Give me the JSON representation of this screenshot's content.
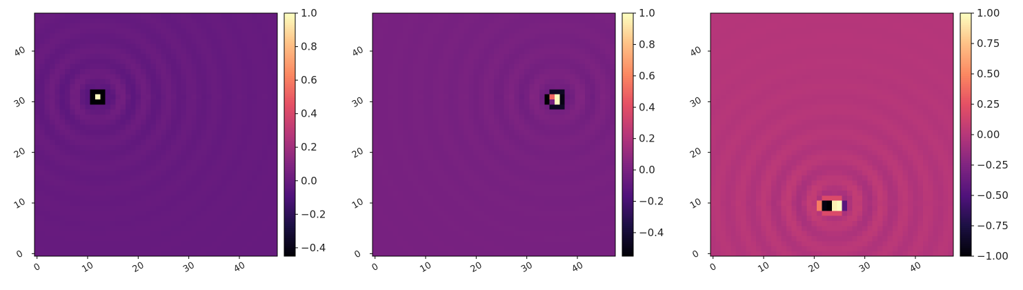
{
  "chart_data": [
    {
      "type": "heatmap",
      "title": "",
      "grid_size": 48,
      "colormap": "magma",
      "x_ticks": [
        "0",
        "10",
        "20",
        "30",
        "40"
      ],
      "y_ticks": [
        "0",
        "10",
        "20",
        "30",
        "40"
      ],
      "xlim": [
        0,
        47
      ],
      "ylim": [
        0,
        47
      ],
      "colorbar": {
        "range": [
          -0.45,
          1.0
        ],
        "ticks": [
          -0.4,
          -0.2,
          0.0,
          0.2,
          0.4,
          0.6,
          0.8,
          1.0
        ],
        "tick_labels": [
          "−0.4",
          "−0.2",
          "0.0",
          "0.2",
          "0.4",
          "0.6",
          "0.8",
          "1.0"
        ]
      },
      "background_value": 0.0,
      "peaks": [
        {
          "x": 11,
          "y": 30,
          "w": 3,
          "h": 3,
          "value": -0.45
        },
        {
          "x": 12,
          "y": 31,
          "w": 1,
          "h": 1,
          "value": 1.0
        }
      ],
      "ring_center": [
        12,
        31
      ],
      "ring_amplitude": 0.07,
      "ring_radius": 12
    },
    {
      "type": "heatmap",
      "title": "",
      "grid_size": 48,
      "colormap": "magma",
      "x_ticks": [
        "0",
        "10",
        "20",
        "30",
        "40"
      ],
      "y_ticks": [
        "0",
        "10",
        "20",
        "30",
        "40"
      ],
      "xlim": [
        0,
        47
      ],
      "ylim": [
        0,
        47
      ],
      "colorbar": {
        "range": [
          -0.55,
          1.0
        ],
        "ticks": [
          -0.4,
          -0.2,
          0.0,
          0.2,
          0.4,
          0.6,
          0.8,
          1.0
        ],
        "tick_labels": [
          "−0.4",
          "−0.2",
          "0.0",
          "0.2",
          "0.4",
          "0.6",
          "0.8",
          "1.0"
        ]
      },
      "background_value": 0.0,
      "peaks": [
        {
          "x": 34,
          "y": 30,
          "w": 1,
          "h": 2,
          "value": -0.55
        },
        {
          "x": 35,
          "y": 31,
          "w": 1,
          "h": 1,
          "value": 0.5
        },
        {
          "x": 36,
          "y": 30,
          "w": 1,
          "h": 2,
          "value": 1.0
        },
        {
          "x": 37,
          "y": 30,
          "w": 1,
          "h": 2,
          "value": -0.5
        },
        {
          "x": 35,
          "y": 29,
          "w": 3,
          "h": 1,
          "value": -0.45
        },
        {
          "x": 35,
          "y": 32,
          "w": 3,
          "h": 1,
          "value": -0.45
        }
      ],
      "ring_center": [
        36,
        31
      ],
      "ring_amplitude": 0.05,
      "ring_radius": 12
    },
    {
      "type": "heatmap",
      "title": "",
      "grid_size": 48,
      "colormap": "magma",
      "x_ticks": [
        "0",
        "10",
        "20",
        "30",
        "40"
      ],
      "y_ticks": [
        "0",
        "10",
        "20",
        "30",
        "40"
      ],
      "xlim": [
        0,
        47
      ],
      "ylim": [
        0,
        47
      ],
      "colorbar": {
        "range": [
          -1.0,
          1.0
        ],
        "ticks": [
          -1.0,
          -0.75,
          -0.5,
          -0.25,
          0.0,
          0.25,
          0.5,
          0.75,
          1.0
        ],
        "tick_labels": [
          "−1.00",
          "−0.75",
          "−0.50",
          "−0.25",
          "0.00",
          "0.25",
          "0.50",
          "0.75",
          "1.00"
        ]
      },
      "background_value": 0.0,
      "peaks": [
        {
          "x": 22,
          "y": 9,
          "w": 1,
          "h": 2,
          "value": -0.95
        },
        {
          "x": 23,
          "y": 9,
          "w": 1,
          "h": 2,
          "value": -1.0
        },
        {
          "x": 24,
          "y": 9,
          "w": 1,
          "h": 2,
          "value": 0.95
        },
        {
          "x": 25,
          "y": 9,
          "w": 1,
          "h": 2,
          "value": 1.0
        },
        {
          "x": 21,
          "y": 9,
          "w": 1,
          "h": 2,
          "value": 0.45
        },
        {
          "x": 26,
          "y": 9,
          "w": 1,
          "h": 2,
          "value": -0.45
        },
        {
          "x": 22,
          "y": 8,
          "w": 4,
          "h": 1,
          "value": 0.2
        },
        {
          "x": 22,
          "y": 11,
          "w": 4,
          "h": 1,
          "value": 0.2
        }
      ],
      "ring_center": [
        24,
        10
      ],
      "ring_amplitude": 0.12,
      "ring_radius": 13
    }
  ]
}
